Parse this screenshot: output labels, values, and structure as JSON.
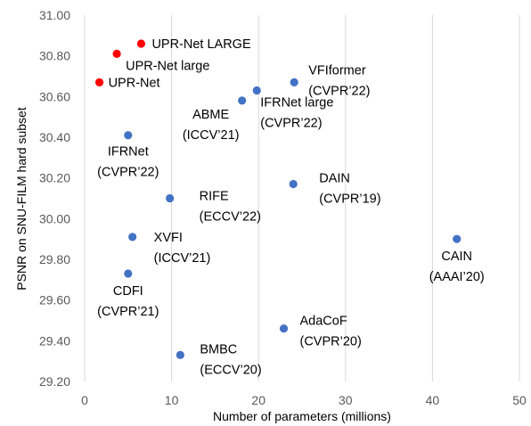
{
  "chart_data": {
    "type": "scatter",
    "xlabel": "Number of parameters (millions)",
    "ylabel": "PSNR on SNU-FILM hard subset",
    "xlim": [
      0,
      50
    ],
    "ylim": [
      29.2,
      31.0
    ],
    "x_ticks": [
      "0",
      "10",
      "20",
      "30",
      "40",
      "50"
    ],
    "y_ticks": [
      "29.20",
      "29.40",
      "29.60",
      "29.80",
      "30.00",
      "30.20",
      "30.40",
      "30.60",
      "30.80",
      "31.00"
    ],
    "grid": "vertical",
    "colors": {
      "ours": "#ff0000",
      "others": "#4472c4"
    },
    "points": [
      {
        "x": 6.5,
        "y": 30.86,
        "group": "ours",
        "label": [
          "UPR-Net LARGE"
        ]
      },
      {
        "x": 3.7,
        "y": 30.81,
        "group": "ours",
        "label": [
          "UPR-Net large"
        ]
      },
      {
        "x": 1.7,
        "y": 30.67,
        "group": "ours",
        "label": [
          "UPR-Net"
        ]
      },
      {
        "x": 24.1,
        "y": 30.67,
        "group": "others",
        "label": [
          "VFIformer",
          "(CVPR’22)"
        ]
      },
      {
        "x": 19.8,
        "y": 30.63,
        "group": "others",
        "label": [
          "IFRNet large",
          "(CVPR’22)"
        ]
      },
      {
        "x": 18.1,
        "y": 30.58,
        "group": "others",
        "label": [
          "ABME",
          "(ICCV’21)"
        ]
      },
      {
        "x": 5.0,
        "y": 30.41,
        "group": "others",
        "label": [
          "IFRNet",
          "(CVPR’22)"
        ]
      },
      {
        "x": 24.0,
        "y": 30.17,
        "group": "others",
        "label": [
          "DAIN",
          "(CVPR’19)"
        ]
      },
      {
        "x": 9.8,
        "y": 30.1,
        "group": "others",
        "label": [
          "RIFE",
          "(ECCV’22)"
        ]
      },
      {
        "x": 5.5,
        "y": 29.91,
        "group": "others",
        "label": [
          "XVFI",
          "(ICCV’21)"
        ]
      },
      {
        "x": 42.8,
        "y": 29.9,
        "group": "others",
        "label": [
          "CAIN",
          "(AAAI’20)"
        ]
      },
      {
        "x": 5.0,
        "y": 29.73,
        "group": "others",
        "label": [
          "CDFI",
          "(CVPR’21)"
        ]
      },
      {
        "x": 22.9,
        "y": 29.46,
        "group": "others",
        "label": [
          "AdaCoF",
          "(CVPR’20)"
        ]
      },
      {
        "x": 11.0,
        "y": 29.33,
        "group": "others",
        "label": [
          "BMBC",
          "(ECCV’20)"
        ]
      }
    ]
  }
}
